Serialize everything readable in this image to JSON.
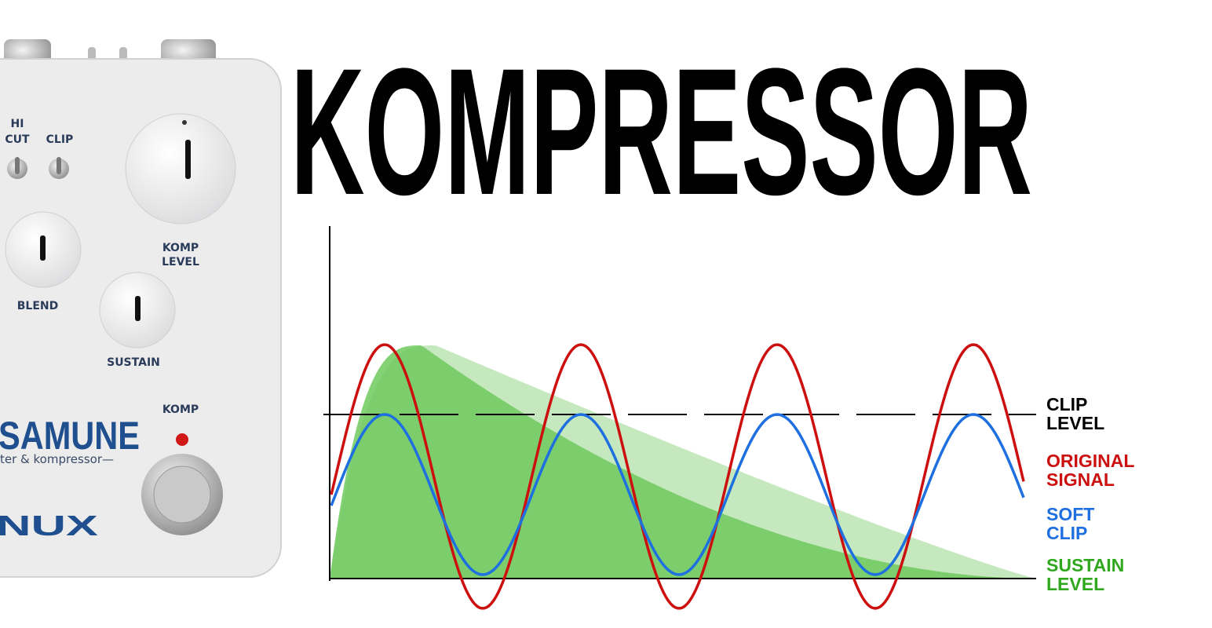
{
  "title": "KOMPRESSOR",
  "pedal": {
    "hi": "HI",
    "cut": "CUT",
    "clip": "CLIP",
    "komp_level": [
      "KOMP",
      "LEVEL"
    ],
    "blend": "BLEND",
    "sustain": "SUSTAIN",
    "komp": "KOMP",
    "name": "SAMUNE",
    "subtitle": "ter & kompressor—",
    "brand": "NUX"
  },
  "legend": [
    {
      "lines": [
        "CLIP",
        "LEVEL"
      ]
    },
    {
      "lines": [
        "ORIGINAL",
        "SIGNAL"
      ]
    },
    {
      "lines": [
        "SOFT",
        "CLIP"
      ]
    },
    {
      "lines": [
        "SUSTAIN",
        "LEVEL"
      ]
    }
  ]
}
